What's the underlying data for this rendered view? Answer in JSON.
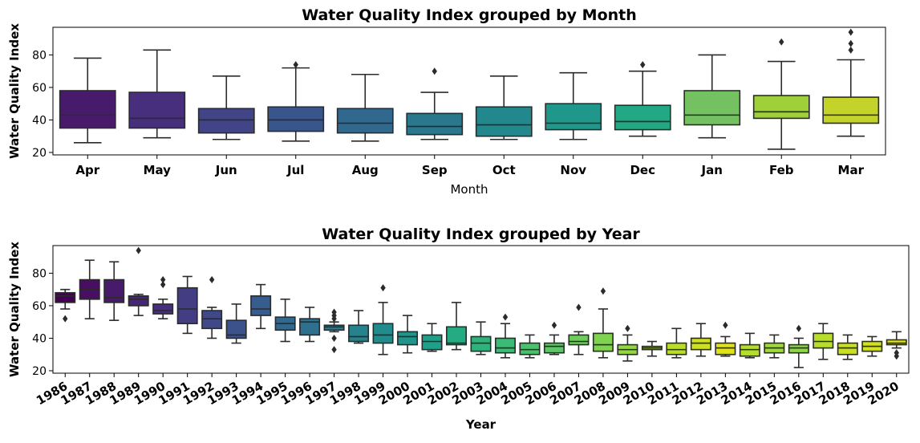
{
  "chart_data": [
    {
      "type": "box",
      "title": "Water Quality Index grouped by Month",
      "xlabel": "Month",
      "ylabel": "Water Quality Index",
      "ylim": [
        18.5,
        97
      ],
      "yticks": [
        20,
        40,
        60,
        80
      ],
      "categories": [
        "Apr",
        "May",
        "Jun",
        "Jul",
        "Aug",
        "Sep",
        "Oct",
        "Nov",
        "Dec",
        "Jan",
        "Feb",
        "Mar"
      ],
      "boxes": [
        {
          "min": 26,
          "q1": 35,
          "median": 43,
          "q3": 58,
          "max": 78,
          "outliers": [],
          "color": "#481a6c"
        },
        {
          "min": 29,
          "q1": 35,
          "median": 41,
          "q3": 57,
          "max": 83,
          "outliers": [],
          "color": "#472f7d"
        },
        {
          "min": 28,
          "q1": 32,
          "median": 40,
          "q3": 47,
          "max": 67,
          "outliers": [],
          "color": "#414487"
        },
        {
          "min": 27,
          "q1": 33,
          "median": 40,
          "q3": 48,
          "max": 72,
          "outliers": [
            74
          ],
          "color": "#39568c"
        },
        {
          "min": 27,
          "q1": 32,
          "median": 38,
          "q3": 47,
          "max": 68,
          "outliers": [],
          "color": "#31688e"
        },
        {
          "min": 28,
          "q1": 31,
          "median": 36,
          "q3": 44,
          "max": 57,
          "outliers": [
            70
          ],
          "color": "#2a788e"
        },
        {
          "min": 28,
          "q1": 30,
          "median": 37,
          "q3": 48,
          "max": 67,
          "outliers": [],
          "color": "#23888e"
        },
        {
          "min": 28,
          "q1": 34,
          "median": 38,
          "q3": 50,
          "max": 69,
          "outliers": [],
          "color": "#1f988b"
        },
        {
          "min": 30,
          "q1": 34,
          "median": 39,
          "q3": 49,
          "max": 70,
          "outliers": [
            74
          ],
          "color": "#22a884"
        },
        {
          "min": 29,
          "q1": 37,
          "median": 43,
          "q3": 58,
          "max": 80,
          "outliers": [],
          "color": "#73c161"
        },
        {
          "min": 22,
          "q1": 41,
          "median": 45,
          "q3": 55,
          "max": 76,
          "outliers": [
            88
          ],
          "color": "#9fd03a"
        },
        {
          "min": 30,
          "q1": 38,
          "median": 43,
          "q3": 54,
          "max": 77,
          "outliers": [
            83,
            87,
            94
          ],
          "color": "#c3d32a"
        }
      ]
    },
    {
      "type": "box",
      "title": "Water Quality Index grouped by Year",
      "xlabel": "Year",
      "ylabel": "Water Quality Index",
      "ylim": [
        18.5,
        97
      ],
      "yticks": [
        20,
        40,
        60,
        80
      ],
      "categories": [
        "1986",
        "1987",
        "1988",
        "1989",
        "1990",
        "1991",
        "1992",
        "1993",
        "1994",
        "1995",
        "1996",
        "1997",
        "1998",
        "1999",
        "2000",
        "2001",
        "2002",
        "2003",
        "2004",
        "2005",
        "2006",
        "2007",
        "2008",
        "2009",
        "2010",
        "2011",
        "2012",
        "2013",
        "2014",
        "2015",
        "2016",
        "2017",
        "2018",
        "2019",
        "2020"
      ],
      "boxes": [
        {
          "min": 58,
          "q1": 62,
          "median": 66,
          "q3": 68,
          "max": 70,
          "outliers": [
            52
          ],
          "color": "#440154"
        },
        {
          "min": 52,
          "q1": 64,
          "median": 70,
          "q3": 76,
          "max": 88,
          "outliers": [],
          "color": "#470e61"
        },
        {
          "min": 51,
          "q1": 62,
          "median": 65,
          "q3": 76,
          "max": 87,
          "outliers": [],
          "color": "#481a6c"
        },
        {
          "min": 54,
          "q1": 60,
          "median": 64,
          "q3": 66,
          "max": 67,
          "outliers": [
            94
          ],
          "color": "#482677"
        },
        {
          "min": 52,
          "q1": 55,
          "median": 57,
          "q3": 61,
          "max": 64,
          "outliers": [
            73,
            76
          ],
          "color": "#46307e"
        },
        {
          "min": 43,
          "q1": 49,
          "median": 58,
          "q3": 71,
          "max": 78,
          "outliers": [],
          "color": "#433d84"
        },
        {
          "min": 40,
          "q1": 46,
          "median": 52,
          "q3": 57,
          "max": 59,
          "outliers": [
            76
          ],
          "color": "#3f4889"
        },
        {
          "min": 37,
          "q1": 40,
          "median": 42,
          "q3": 51,
          "max": 61,
          "outliers": [],
          "color": "#3b528b"
        },
        {
          "min": 46,
          "q1": 54,
          "median": 58,
          "q3": 66,
          "max": 73,
          "outliers": [],
          "color": "#365d8d"
        },
        {
          "min": 38,
          "q1": 45,
          "median": 49,
          "q3": 53,
          "max": 64,
          "outliers": [],
          "color": "#31688e"
        },
        {
          "min": 38,
          "q1": 42,
          "median": 50,
          "q3": 52,
          "max": 59,
          "outliers": [],
          "color": "#2d718e"
        },
        {
          "min": 44,
          "q1": 45,
          "median": 47,
          "q3": 48,
          "max": 50,
          "outliers": [
            33,
            40,
            52,
            54,
            56
          ],
          "color": "#2a7b8e"
        },
        {
          "min": 37,
          "q1": 38,
          "median": 41,
          "q3": 48,
          "max": 57,
          "outliers": [],
          "color": "#26838e"
        },
        {
          "min": 30,
          "q1": 37,
          "median": 42,
          "q3": 49,
          "max": 62,
          "outliers": [
            71
          ],
          "color": "#228c8d"
        },
        {
          "min": 31,
          "q1": 36,
          "median": 41,
          "q3": 44,
          "max": 54,
          "outliers": [],
          "color": "#1f968b"
        },
        {
          "min": 32,
          "q1": 33,
          "median": 38,
          "q3": 42,
          "max": 49,
          "outliers": [],
          "color": "#1fa088"
        },
        {
          "min": 33,
          "q1": 36,
          "median": 37,
          "q3": 47,
          "max": 62,
          "outliers": [],
          "color": "#25ab82"
        },
        {
          "min": 30,
          "q1": 32,
          "median": 37,
          "q3": 41,
          "max": 50,
          "outliers": [],
          "color": "#2eb37c"
        },
        {
          "min": 28,
          "q1": 31,
          "median": 34,
          "q3": 40,
          "max": 49,
          "outliers": [
            53
          ],
          "color": "#3bbb75"
        },
        {
          "min": 28,
          "q1": 30,
          "median": 33,
          "q3": 37,
          "max": 42,
          "outliers": [],
          "color": "#4ac16d"
        },
        {
          "min": 30,
          "q1": 31,
          "median": 35,
          "q3": 37,
          "max": 42,
          "outliers": [
            48
          ],
          "color": "#5ac864"
        },
        {
          "min": 30,
          "q1": 36,
          "median": 38,
          "q3": 42,
          "max": 44,
          "outliers": [
            59
          ],
          "color": "#6ccd5a"
        },
        {
          "min": 28,
          "q1": 32,
          "median": 36,
          "q3": 43,
          "max": 58,
          "outliers": [
            69
          ],
          "color": "#7fd34e"
        },
        {
          "min": 26,
          "q1": 30,
          "median": 33,
          "q3": 36,
          "max": 42,
          "outliers": [
            46
          ],
          "color": "#93d741"
        },
        {
          "min": 29,
          "q1": 33,
          "median": 34,
          "q3": 35,
          "max": 38,
          "outliers": [],
          "color": "#a8db34"
        },
        {
          "min": 28,
          "q1": 30,
          "median": 33,
          "q3": 37,
          "max": 46,
          "outliers": [],
          "color": "#bade28"
        },
        {
          "min": 29,
          "q1": 33,
          "median": 37,
          "q3": 40,
          "max": 49,
          "outliers": [],
          "color": "#cde11d"
        },
        {
          "min": 29,
          "q1": 30,
          "median": 34,
          "q3": 37,
          "max": 41,
          "outliers": [
            48
          ],
          "color": "#dfe318"
        },
        {
          "min": 28,
          "q1": 29,
          "median": 33,
          "q3": 36,
          "max": 43,
          "outliers": [],
          "color": "#b5de2b"
        },
        {
          "min": 28,
          "q1": 31,
          "median": 34,
          "q3": 37,
          "max": 42,
          "outliers": [],
          "color": "#a0da39"
        },
        {
          "min": 22,
          "q1": 31,
          "median": 34,
          "q3": 36,
          "max": 40,
          "outliers": [
            46
          ],
          "color": "#8ed645"
        },
        {
          "min": 27,
          "q1": 34,
          "median": 38,
          "q3": 43,
          "max": 49,
          "outliers": [],
          "color": "#b8de29"
        },
        {
          "min": 27,
          "q1": 30,
          "median": 34,
          "q3": 37,
          "max": 42,
          "outliers": [],
          "color": "#c8e020"
        },
        {
          "min": 29,
          "q1": 32,
          "median": 35,
          "q3": 38,
          "max": 41,
          "outliers": [],
          "color": "#d2e21b"
        },
        {
          "min": 34,
          "q1": 36,
          "median": 37,
          "q3": 39,
          "max": 44,
          "outliers": [
            29,
            31
          ],
          "color": "#dde318"
        }
      ]
    }
  ]
}
